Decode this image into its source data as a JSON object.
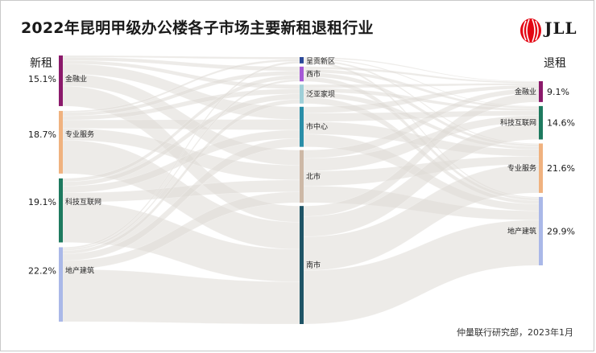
{
  "title": "2022年昆明甲级办公楼各子市场主要新租退租行业",
  "source": "仲量联行研究部，2023年1月",
  "logo": {
    "text": "JLL",
    "icon": "jll-logo-icon",
    "color": "#e30613"
  },
  "chart_data": {
    "type": "sankey",
    "title": "2022年昆明甲级办公楼各子市场主要新租退租行业",
    "left_label": "新租",
    "right_label": "退租",
    "left_nodes": [
      {
        "name": "金融业",
        "value": 15.1,
        "pct_label": "15.1%",
        "color": "#8b1a6b"
      },
      {
        "name": "专业服务",
        "value": 18.7,
        "pct_label": "18.7%",
        "color": "#f0b27f"
      },
      {
        "name": "科技互联网",
        "value": 19.1,
        "pct_label": "19.1%",
        "color": "#1e7a5f"
      },
      {
        "name": "地产建筑",
        "value": 22.2,
        "pct_label": "22.2%",
        "color": "#aab8e8"
      }
    ],
    "middle_nodes": [
      {
        "name": "呈贡新区",
        "value": 1.5,
        "color": "#2c4a9a"
      },
      {
        "name": "西市",
        "value": 3.5,
        "color": "#a55ad6"
      },
      {
        "name": "泛亚家坝",
        "value": 4.5,
        "color": "#9fcfd8"
      },
      {
        "name": "市中心",
        "value": 9.5,
        "color": "#2a8ea8"
      },
      {
        "name": "北市",
        "value": 12.5,
        "color": "#cdb8a6"
      },
      {
        "name": "南市",
        "value": 28.0,
        "color": "#1f5466"
      }
    ],
    "right_nodes": [
      {
        "name": "金融业",
        "value": 9.1,
        "pct_label": "9.1%",
        "color": "#8b1a6b"
      },
      {
        "name": "科技互联网",
        "value": 14.6,
        "pct_label": "14.6%",
        "color": "#1e7a5f"
      },
      {
        "name": "专业服务",
        "value": 21.6,
        "pct_label": "21.6%",
        "color": "#f0b27f"
      },
      {
        "name": "地产建筑",
        "value": 29.9,
        "pct_label": "29.9%",
        "color": "#aab8e8"
      }
    ],
    "links_in": [
      {
        "source": "金融业",
        "target": "呈贡新区",
        "value": 0.5
      },
      {
        "source": "金融业",
        "target": "西市",
        "value": 1.0
      },
      {
        "source": "金融业",
        "target": "泛亚家坝",
        "value": 1.0
      },
      {
        "source": "金融业",
        "target": "市中心",
        "value": 3.0
      },
      {
        "source": "金融业",
        "target": "北市",
        "value": 3.6
      },
      {
        "source": "金融业",
        "target": "南市",
        "value": 6.0
      },
      {
        "source": "专业服务",
        "target": "呈贡新区",
        "value": 0.5
      },
      {
        "source": "专业服务",
        "target": "西市",
        "value": 1.0
      },
      {
        "source": "专业服务",
        "target": "泛亚家坝",
        "value": 1.2
      },
      {
        "source": "专业服务",
        "target": "市中心",
        "value": 2.5
      },
      {
        "source": "专业服务",
        "target": "北市",
        "value": 3.5
      },
      {
        "source": "专业服务",
        "target": "南市",
        "value": 10.0
      },
      {
        "source": "科技互联网",
        "target": "西市",
        "value": 1.0
      },
      {
        "source": "科技互联网",
        "target": "泛亚家坝",
        "value": 1.3
      },
      {
        "source": "科技互联网",
        "target": "市中心",
        "value": 2.0
      },
      {
        "source": "科技互联网",
        "target": "北市",
        "value": 2.8
      },
      {
        "source": "科技互联网",
        "target": "南市",
        "value": 12.0
      },
      {
        "source": "地产建筑",
        "target": "呈贡新区",
        "value": 0.5
      },
      {
        "source": "地产建筑",
        "target": "西市",
        "value": 0.5
      },
      {
        "source": "地产建筑",
        "target": "泛亚家坝",
        "value": 1.0
      },
      {
        "source": "地产建筑",
        "target": "市中心",
        "value": 2.0
      },
      {
        "source": "地产建筑",
        "target": "北市",
        "value": 2.6
      },
      {
        "source": "地产建筑",
        "target": "南市",
        "value": 15.6
      }
    ],
    "links_out": [
      {
        "source": "呈贡新区",
        "target": "金融业",
        "value": 0.3
      },
      {
        "source": "呈贡新区",
        "target": "科技互联网",
        "value": 0.3
      },
      {
        "source": "呈贡新区",
        "target": "专业服务",
        "value": 0.4
      },
      {
        "source": "呈贡新区",
        "target": "地产建筑",
        "value": 0.5
      },
      {
        "source": "西市",
        "target": "金融业",
        "value": 0.6
      },
      {
        "source": "西市",
        "target": "科技互联网",
        "value": 0.8
      },
      {
        "source": "西市",
        "target": "专业服务",
        "value": 1.0
      },
      {
        "source": "西市",
        "target": "地产建筑",
        "value": 1.1
      },
      {
        "source": "泛亚家坝",
        "target": "金融业",
        "value": 0.8
      },
      {
        "source": "泛亚家坝",
        "target": "科技互联网",
        "value": 1.0
      },
      {
        "source": "泛亚家坝",
        "target": "专业服务",
        "value": 1.2
      },
      {
        "source": "泛亚家坝",
        "target": "地产建筑",
        "value": 1.5
      },
      {
        "source": "市中心",
        "target": "金融业",
        "value": 1.5
      },
      {
        "source": "市中心",
        "target": "科技互联网",
        "value": 2.0
      },
      {
        "source": "市中心",
        "target": "专业服务",
        "value": 3.0
      },
      {
        "source": "市中心",
        "target": "地产建筑",
        "value": 3.0
      },
      {
        "source": "北市",
        "target": "金融业",
        "value": 2.0
      },
      {
        "source": "北市",
        "target": "科技互联网",
        "value": 3.0
      },
      {
        "source": "北市",
        "target": "专业服务",
        "value": 3.5
      },
      {
        "source": "北市",
        "target": "地产建筑",
        "value": 4.0
      },
      {
        "source": "南市",
        "target": "金融业",
        "value": 3.9
      },
      {
        "source": "南市",
        "target": "科技互联网",
        "value": 7.5
      },
      {
        "source": "南市",
        "target": "专业服务",
        "value": 12.5
      },
      {
        "source": "南市",
        "target": "地产建筑",
        "value": 19.8
      }
    ]
  }
}
